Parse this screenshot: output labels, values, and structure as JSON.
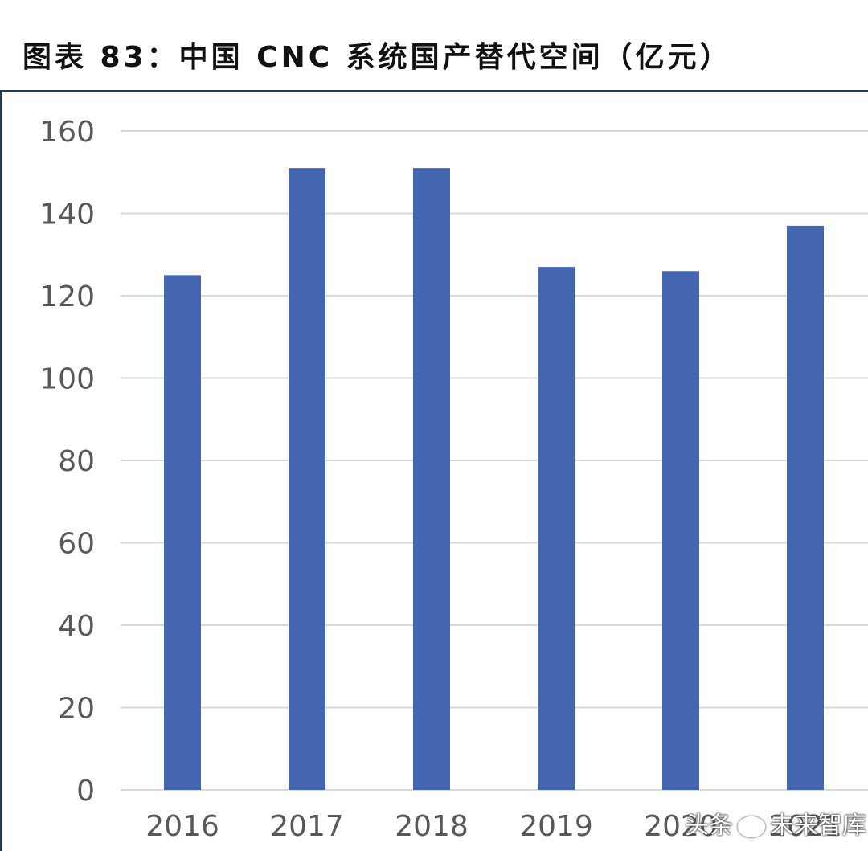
{
  "title": "图表 83：中国 CNC 系统国产替代空间（亿元）",
  "watermark": {
    "prefix": "头条",
    "name": "未来智库"
  },
  "colors": {
    "bar": "#4466b1",
    "grid": "#d9d9d9",
    "axis_text": "#595959"
  },
  "chart_data": {
    "type": "bar",
    "title": "图表 83：中国 CNC 系统国产替代空间（亿元）",
    "xlabel": "",
    "ylabel": "",
    "categories": [
      "2016",
      "2017",
      "2018",
      "2019",
      "2020",
      "2021"
    ],
    "values": [
      125,
      151,
      151,
      127,
      126,
      137
    ],
    "ylim": [
      0,
      160
    ],
    "yticks": [
      0,
      20,
      40,
      60,
      80,
      100,
      120,
      140,
      160
    ],
    "grid": true,
    "legend": "none"
  }
}
